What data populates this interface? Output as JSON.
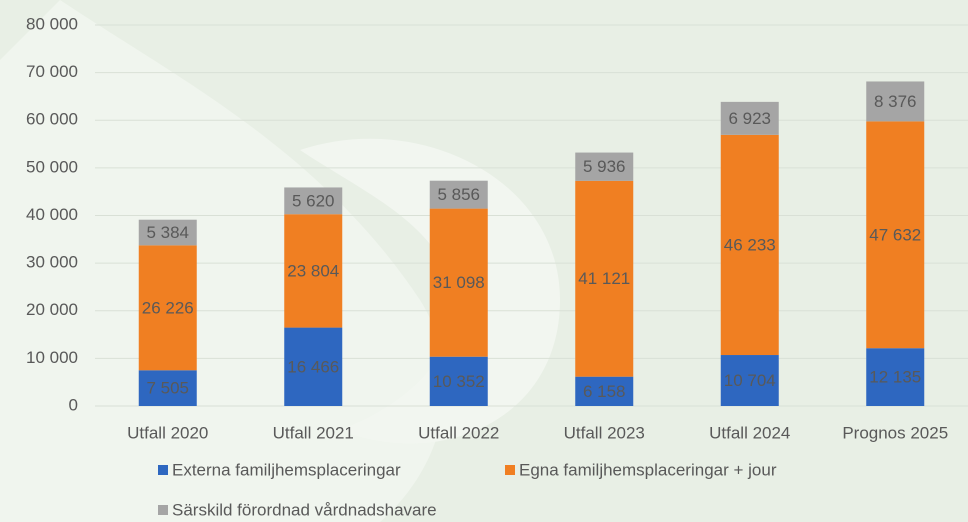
{
  "chart_data": {
    "type": "stacked-bar",
    "categories": [
      "Utfall  2020",
      "Utfall 2021",
      "Utfall 2022",
      "Utfall 2023",
      "Utfall 2024",
      "Prognos 2025"
    ],
    "series": [
      {
        "name": "Externa familjhemsplaceringar",
        "color": "#2e67c0",
        "values": [
          7505,
          16466,
          10352,
          6158,
          10704,
          12135
        ],
        "value_labels": [
          "7 505",
          "16 466",
          "10 352",
          "6 158",
          "10 704",
          "12 135"
        ]
      },
      {
        "name": "Egna familjhemsplaceringar + jour",
        "color": "#f07f22",
        "values": [
          26226,
          23804,
          31098,
          41121,
          46233,
          47632
        ],
        "value_labels": [
          "26 226",
          "23 804",
          "31 098",
          "41 121",
          "46 233",
          "47 632"
        ]
      },
      {
        "name": "Särskild förordnad vårdnadshavare",
        "color": "#a5a5a5",
        "values": [
          5384,
          5620,
          5856,
          5936,
          6923,
          8376
        ],
        "value_labels": [
          "5 384",
          "5 620",
          "5 856",
          "5 936",
          "6 923",
          "8 376"
        ]
      }
    ],
    "ylim": [
      0,
      80000
    ],
    "yticks": [
      0,
      {
        "value": 10000,
        "label": "10 000"
      },
      {
        "value": 20000,
        "label": "20 000"
      },
      {
        "value": 30000,
        "label": "30 000"
      },
      {
        "value": 40000,
        "label": "40 000"
      },
      {
        "value": 50000,
        "label": "50 000"
      },
      {
        "value": 60000,
        "label": "60 000"
      },
      {
        "value": 70000,
        "label": "70 000"
      },
      {
        "value": 80000,
        "label": "80 000"
      }
    ],
    "grid": true
  }
}
